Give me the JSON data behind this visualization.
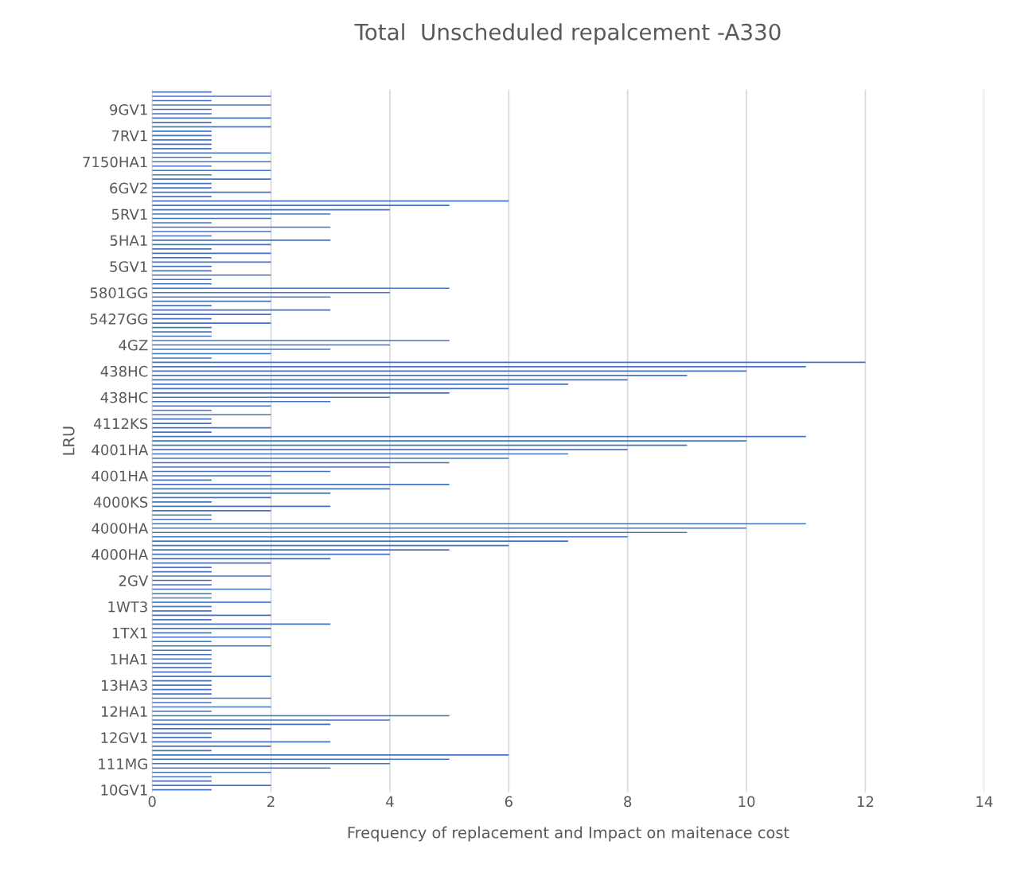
{
  "chart_data": {
    "type": "bar",
    "orientation": "horizontal",
    "title": "Total  Unscheduled repalcement -A330",
    "xlabel": "Frequency of replacement and Impact on maitenace cost",
    "ylabel": "LRU",
    "categories": [
      null,
      null,
      null,
      null,
      "9GV1",
      null,
      null,
      null,
      null,
      null,
      "7RV1",
      null,
      null,
      null,
      null,
      null,
      "7150HA1",
      null,
      null,
      null,
      null,
      null,
      "6GV2",
      null,
      null,
      null,
      null,
      null,
      "5RV1",
      null,
      null,
      null,
      null,
      null,
      "5HA1",
      null,
      null,
      null,
      null,
      null,
      "5GV1",
      null,
      null,
      null,
      null,
      null,
      "5801GG",
      null,
      null,
      null,
      null,
      null,
      "5427GG",
      null,
      null,
      null,
      null,
      null,
      "4GZ",
      null,
      null,
      null,
      null,
      null,
      "438HC",
      null,
      null,
      null,
      null,
      null,
      "438HC",
      null,
      null,
      null,
      null,
      null,
      "4112KS",
      null,
      null,
      null,
      null,
      null,
      "4001HA",
      null,
      null,
      null,
      null,
      null,
      "4001HA",
      null,
      null,
      null,
      null,
      null,
      "4000KS",
      null,
      null,
      null,
      null,
      null,
      "4000HA",
      null,
      null,
      null,
      null,
      null,
      "4000HA",
      null,
      null,
      null,
      null,
      null,
      "2GV",
      null,
      null,
      null,
      null,
      null,
      "1WT3",
      null,
      null,
      null,
      null,
      null,
      "1TX1",
      null,
      null,
      null,
      null,
      null,
      "1HA1",
      null,
      null,
      null,
      null,
      null,
      "13HA3",
      null,
      null,
      null,
      null,
      null,
      "12HA1",
      null,
      null,
      null,
      null,
      null,
      "12GV1",
      null,
      null,
      null,
      null,
      null,
      "111MG",
      null,
      null,
      null,
      null,
      null,
      "10GV1"
    ],
    "values": [
      1,
      2,
      1,
      2,
      1,
      1,
      2,
      1,
      2,
      1,
      1,
      1,
      1,
      1,
      2,
      1,
      2,
      1,
      2,
      1,
      2,
      1,
      1,
      2,
      1,
      6,
      5,
      4,
      3,
      2,
      1,
      3,
      2,
      1,
      3,
      2,
      1,
      2,
      1,
      2,
      1,
      1,
      2,
      1,
      1,
      5,
      4,
      3,
      2,
      1,
      3,
      2,
      1,
      2,
      1,
      1,
      1,
      5,
      4,
      3,
      2,
      1,
      12,
      11,
      10,
      9,
      8,
      7,
      6,
      5,
      4,
      3,
      2,
      1,
      2,
      1,
      1,
      2,
      1,
      11,
      10,
      9,
      8,
      7,
      6,
      5,
      4,
      3,
      2,
      1,
      5,
      4,
      3,
      2,
      1,
      3,
      2,
      1,
      1,
      11,
      10,
      9,
      8,
      7,
      6,
      5,
      4,
      3,
      2,
      1,
      1,
      2,
      1,
      1,
      2,
      1,
      1,
      2,
      1,
      1,
      2,
      1,
      3,
      2,
      1,
      2,
      1,
      2,
      1,
      1,
      1,
      1,
      1,
      1,
      2,
      1,
      1,
      1,
      1,
      2,
      1,
      2,
      1,
      5,
      4,
      3,
      2,
      1,
      1,
      3,
      2,
      1,
      6,
      5,
      4,
      3,
      2,
      1,
      1,
      2,
      1
    ],
    "color": "#4472c4",
    "xlim": [
      0,
      14
    ],
    "xticks": [
      0,
      2,
      4,
      6,
      8,
      10,
      12,
      14
    ],
    "grid": "x"
  }
}
